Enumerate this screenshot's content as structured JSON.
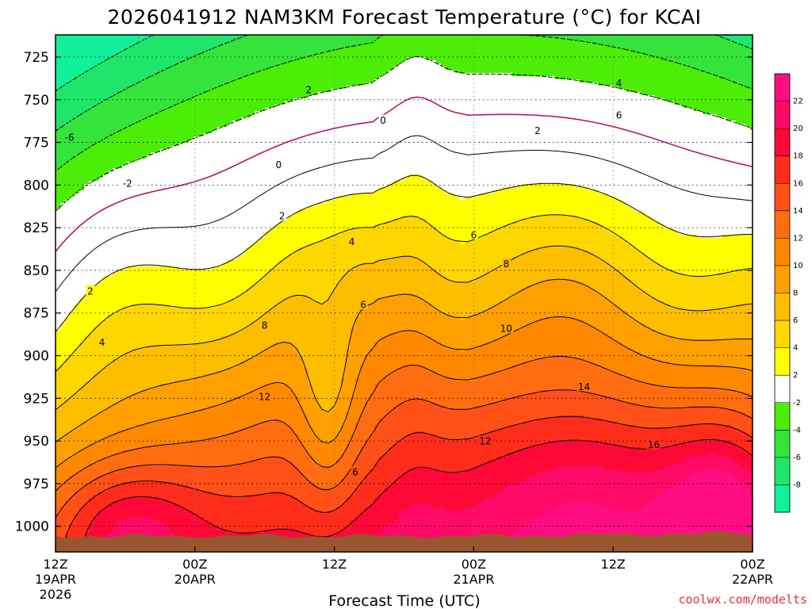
{
  "chart_data": {
    "type": "heatmap",
    "title": "2026041912 NAM3KM Forecast Temperature (°C) for KCAI",
    "xlabel": "Forecast Time (UTC)",
    "ylabel": "",
    "y_ticks": [
      "725",
      "750",
      "775",
      "800",
      "825",
      "850",
      "875",
      "900",
      "925",
      "950",
      "975",
      "1000"
    ],
    "x_ticks": [
      {
        "time": "12Z",
        "date": "19APR",
        "year": "2026"
      },
      {
        "time": "00Z",
        "date": "20APR"
      },
      {
        "time": "12Z",
        "date": ""
      },
      {
        "time": "00Z",
        "date": "21APR"
      },
      {
        "time": "12Z",
        "date": ""
      },
      {
        "time": "00Z",
        "date": "22APR"
      }
    ],
    "y_range_hPa": [
      712,
      1015
    ],
    "x_range_hours": [
      0,
      60
    ],
    "colorbar": [
      {
        "label": "-8",
        "color": "#11f09a"
      },
      {
        "label": "-6",
        "color": "#1fe66a"
      },
      {
        "label": "-4",
        "color": "#35e43a"
      },
      {
        "label": "-2",
        "color": "#4ced06"
      },
      {
        "label": "2",
        "color": "#ffffff"
      },
      {
        "label": "4",
        "color": "#ffff00"
      },
      {
        "label": "6",
        "color": "#ffd700"
      },
      {
        "label": "8",
        "color": "#ffbd00"
      },
      {
        "label": "10",
        "color": "#ffa000"
      },
      {
        "label": "12",
        "color": "#ff8800"
      },
      {
        "label": "14",
        "color": "#ff6d10"
      },
      {
        "label": "16",
        "color": "#ff5018"
      },
      {
        "label": "18",
        "color": "#ff2c1c"
      },
      {
        "label": "20",
        "color": "#ff0838"
      },
      {
        "label": "22",
        "color": "#ff0a66"
      }
    ],
    "colorbar_top_color": "#ff0d82",
    "contour_labels": [
      {
        "text": "-6",
        "hour": 1.2,
        "hPa": 772
      },
      {
        "text": "-2",
        "hour": 6.2,
        "hPa": 799
      },
      {
        "text": "2",
        "hour": 3.0,
        "hPa": 862
      },
      {
        "text": "2",
        "hour": 19.5,
        "hPa": 818
      },
      {
        "text": "2",
        "hour": 21.8,
        "hPa": 744
      },
      {
        "text": "2",
        "hour": 41.5,
        "hPa": 768
      },
      {
        "text": "0",
        "hour": 19.2,
        "hPa": 788
      },
      {
        "text": "0",
        "hour": 28.2,
        "hPa": 762
      },
      {
        "text": "4",
        "hour": 4.0,
        "hPa": 892
      },
      {
        "text": "4",
        "hour": 25.5,
        "hPa": 833
      },
      {
        "text": "4",
        "hour": 48.5,
        "hPa": 740
      },
      {
        "text": "6",
        "hour": 26.5,
        "hPa": 870
      },
      {
        "text": "6",
        "hour": 36.0,
        "hPa": 829
      },
      {
        "text": "6",
        "hour": 48.5,
        "hPa": 759
      },
      {
        "text": "6",
        "hour": 25.8,
        "hPa": 968
      },
      {
        "text": "8",
        "hour": 18.0,
        "hPa": 882
      },
      {
        "text": "8",
        "hour": 38.8,
        "hPa": 846
      },
      {
        "text": "10",
        "hour": 38.8,
        "hPa": 884
      },
      {
        "text": "12",
        "hour": 18.0,
        "hPa": 924
      },
      {
        "text": "12",
        "hour": 37.0,
        "hPa": 950
      },
      {
        "text": "14",
        "hour": 45.5,
        "hPa": 918
      },
      {
        "text": "16",
        "hour": 51.5,
        "hPa": 952
      }
    ]
  },
  "credit": "coolwx.com/modelts",
  "colors": {
    "ground": "#99562e",
    "freezing_line": "#b5166e"
  }
}
